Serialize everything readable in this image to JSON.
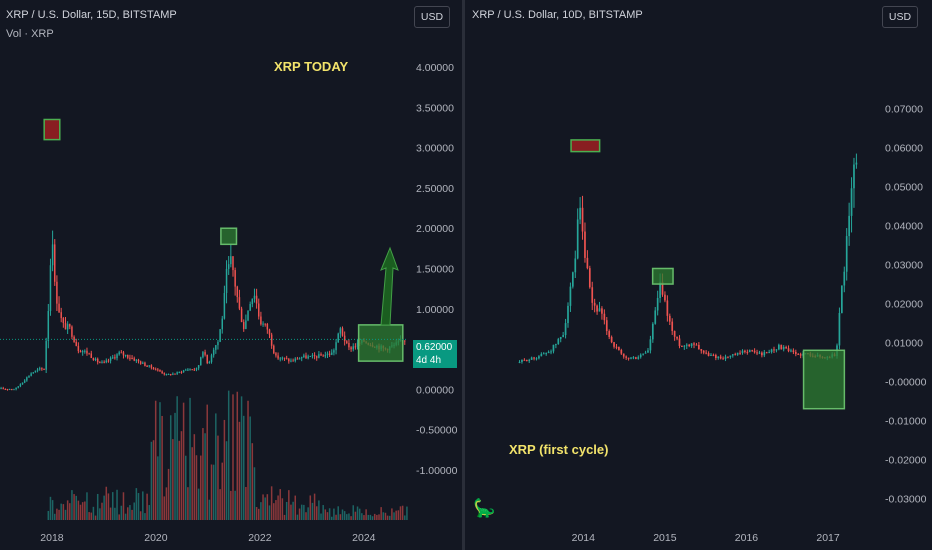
{
  "left": {
    "symbol_line": "XRP / U.S. Dollar, 15D, BITSTAMP",
    "volume_label": "Vol · XRP",
    "currency_button": "USD",
    "annotation": "XRP TODAY",
    "price_tag_value": "0.62000",
    "price_tag_countdown": "4d 4h",
    "colors": {
      "up": "#26a69a",
      "down": "#ef5350",
      "annotation": "#f2e36b",
      "price_line": "#089981"
    },
    "chart_data": {
      "type": "candlestick",
      "title": "XRP / U.S. Dollar, 15D, BITSTAMP",
      "y_axis_ticks": [
        "4.00000",
        "3.50000",
        "3.00000",
        "2.50000",
        "2.00000",
        "1.50000",
        "1.00000",
        "0.50000",
        "0.00000",
        "-0.50000",
        "-1.00000"
      ],
      "x_axis_ticks": [
        "2018",
        "2020",
        "2022",
        "2024"
      ],
      "ylim": [
        -1.25,
        4.25
      ],
      "xlim": [
        2017.0,
        2024.85
      ],
      "last_price": 0.62,
      "close_series": {
        "x": [
          2017.0,
          2017.3,
          2017.6,
          2017.75,
          2017.85,
          2017.95,
          2018.0,
          2018.05,
          2018.1,
          2018.2,
          2018.35,
          2018.5,
          2018.7,
          2018.85,
          2019.0,
          2019.3,
          2019.5,
          2019.8,
          2020.0,
          2020.2,
          2020.4,
          2020.6,
          2020.8,
          2020.9,
          2021.0,
          2021.1,
          2021.2,
          2021.3,
          2021.35,
          2021.45,
          2021.6,
          2021.7,
          2021.8,
          2021.9,
          2022.0,
          2022.15,
          2022.3,
          2022.45,
          2022.6,
          2022.8,
          2023.0,
          2023.2,
          2023.4,
          2023.55,
          2023.7,
          2023.85,
          2024.0,
          2024.2,
          2024.4,
          2024.6,
          2024.8
        ],
        "y": [
          0.006,
          0.006,
          0.2,
          0.25,
          0.25,
          1.2,
          2.1,
          1.3,
          1.1,
          0.8,
          0.75,
          0.5,
          0.45,
          0.35,
          0.32,
          0.45,
          0.4,
          0.3,
          0.25,
          0.18,
          0.2,
          0.25,
          0.25,
          0.5,
          0.3,
          0.5,
          0.6,
          1.0,
          1.4,
          1.6,
          1.0,
          0.75,
          1.1,
          1.2,
          0.85,
          0.75,
          0.4,
          0.38,
          0.35,
          0.4,
          0.4,
          0.42,
          0.45,
          0.75,
          0.5,
          0.55,
          0.6,
          0.55,
          0.5,
          0.55,
          0.62
        ]
      },
      "annotation_boxes": [
        {
          "label": "2018 peak",
          "x_range": [
            2017.85,
            2018.15
          ],
          "y_range": [
            3.1,
            3.35
          ],
          "fill": "red"
        },
        {
          "label": "2021 peak",
          "x_range": [
            2021.25,
            2021.55
          ],
          "y_range": [
            1.8,
            2.0
          ],
          "fill": "green"
        },
        {
          "label": "2024 range",
          "x_range": [
            2023.9,
            2024.75
          ],
          "y_range": [
            0.35,
            0.8
          ],
          "fill": "green"
        }
      ]
    }
  },
  "right": {
    "symbol_line": "XRP / U.S. Dollar, 10D, BITSTAMP",
    "currency_button": "USD",
    "annotation": "XRP (first cycle)",
    "chart_data": {
      "type": "candlestick",
      "title": "XRP / U.S. Dollar, 10D, BITSTAMP",
      "y_axis_ticks": [
        "0.07000",
        "0.06000",
        "0.05000",
        "0.04000",
        "0.03000",
        "0.02000",
        "0.01000",
        "-0.00000",
        "-0.01000",
        "-0.02000",
        "-0.03000"
      ],
      "x_axis_ticks": [
        "2014",
        "2015",
        "2016",
        "2017"
      ],
      "ylim": [
        -0.033,
        0.082
      ],
      "xlim": [
        2012.55,
        2017.6
      ],
      "close_series": {
        "x": [
          2013.2,
          2013.4,
          2013.6,
          2013.75,
          2013.9,
          2013.95,
          2014.0,
          2014.1,
          2014.2,
          2014.35,
          2014.5,
          2014.65,
          2014.8,
          2014.9,
          2014.95,
          2015.0,
          2015.1,
          2015.2,
          2015.35,
          2015.5,
          2015.7,
          2015.9,
          2016.0,
          2016.2,
          2016.4,
          2016.6,
          2016.8,
          2016.95,
          2017.1,
          2017.15,
          2017.2,
          2017.25,
          2017.3,
          2017.35
        ],
        "y": [
          0.005,
          0.006,
          0.008,
          0.012,
          0.03,
          0.045,
          0.035,
          0.02,
          0.018,
          0.01,
          0.006,
          0.006,
          0.008,
          0.02,
          0.025,
          0.02,
          0.012,
          0.009,
          0.01,
          0.007,
          0.006,
          0.007,
          0.008,
          0.007,
          0.009,
          0.007,
          0.007,
          0.006,
          0.007,
          0.02,
          0.03,
          0.04,
          0.05,
          0.06
        ]
      },
      "annotation_boxes": [
        {
          "label": "2013 peak",
          "x_range": [
            2013.85,
            2014.2
          ],
          "y_range": [
            0.059,
            0.062
          ],
          "fill": "red"
        },
        {
          "label": "2014 peak",
          "x_range": [
            2014.85,
            2015.1
          ],
          "y_range": [
            0.025,
            0.029
          ],
          "fill": "green"
        },
        {
          "label": "2017 range",
          "x_range": [
            2016.7,
            2017.2
          ],
          "y_range": [
            -0.007,
            0.008
          ],
          "fill": "green"
        }
      ]
    }
  }
}
